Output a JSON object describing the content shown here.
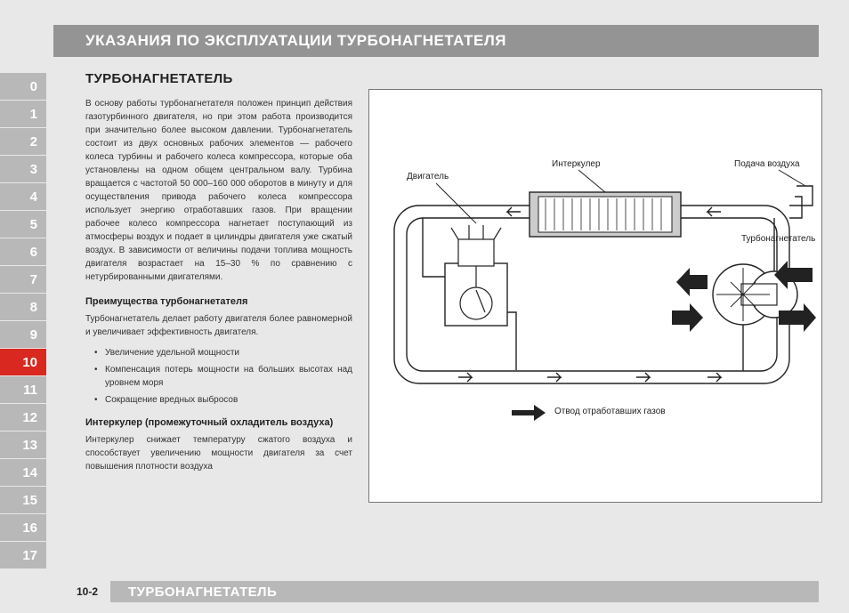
{
  "title_bar": "УКАЗАНИЯ ПО ЭКСПЛУАТАЦИИ ТУРБОНАГНЕТАТЕЛЯ",
  "tabs": [
    "0",
    "1",
    "2",
    "3",
    "4",
    "5",
    "6",
    "7",
    "8",
    "9",
    "10",
    "11",
    "12",
    "13",
    "14",
    "15",
    "16",
    "17"
  ],
  "active_tab_index": 10,
  "section_title": "ТУРБОНАГНЕТАТЕЛЬ",
  "intro_paragraph": "В основу работы турбонагнетателя положен принцип действия газотурбинного двигателя, но при этом работа производится при значительно более высоком давлении. Турбонагнетатель состоит из двух основных рабочих элементов — рабочего колеса турбины и рабочего колеса компрессора, которые оба установлены на одном общем центральном валу. Турбина вращается с частотой 50 000–160 000 оборотов в минуту и для осуществления привода рабочего колеса компрессора использует энергию отработавших газов. При вращении рабочее колесо компрессора нагнетает поступающий из атмосферы воздух и подает в цилиндры двигателя уже сжатый воздух. В зависимости от величины подачи топлива мощность двигателя возрастает на 15–30 % по сравнению с нетурбированными двигателями.",
  "advantages_heading": "Преимущества турбонагнетателя",
  "advantages_intro": "Турбонагнетатель делает работу двигателя более равномерной и увеличивает эффективность двигателя.",
  "advantages_bullets": [
    "Увеличение удельной мощности",
    "Компенсация потерь мощности на больших высотах над уровнем моря",
    "Сокращение вредных выбросов"
  ],
  "intercooler_heading": "Интеркулер (промежуточный охладитель воздуха)",
  "intercooler_text": "Интеркулер снижает температуру сжатого воздуха и способствует увеличению мощности двигателя за счет повышения плотности воздуха",
  "footer_page": "10-2",
  "footer_label": "ТУРБОНАГНЕТАТЕЛЬ",
  "diagram": {
    "labels": {
      "engine": "Двигатель",
      "intercooler": "Интеркулер",
      "air_supply": "Подача воздуха",
      "turbocharger": "Турбонагнетатель",
      "exhaust": "Отвод отработавших газов"
    },
    "colors": {
      "box_bg": "#ffffff",
      "box_border": "#777777",
      "line": "#222222",
      "arrow_fill": "#222222",
      "legend_arrow": "#222222",
      "intercooler_fill": "#cccccc"
    },
    "stroke_width": 1.4
  }
}
